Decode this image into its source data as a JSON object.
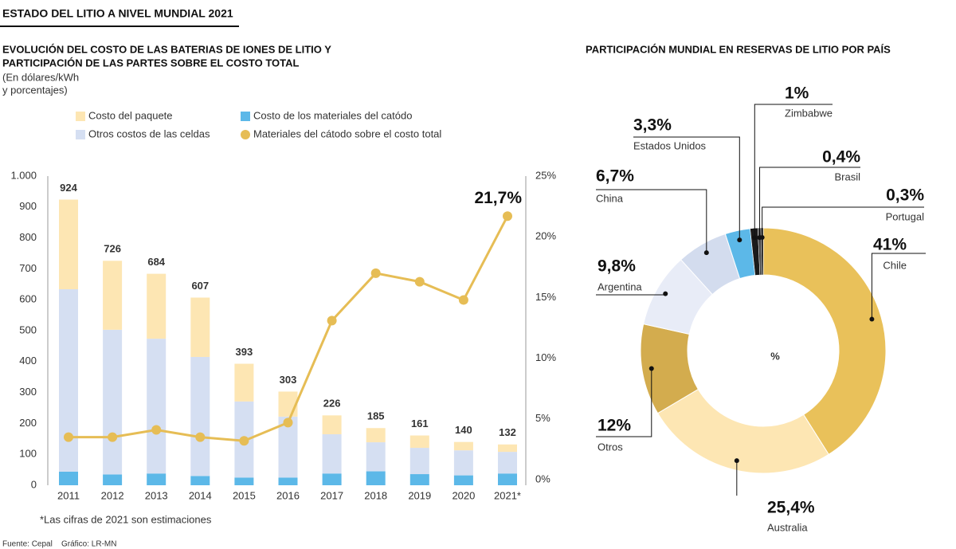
{
  "page_title": "ESTADO DEL LITIO A NIVEL MUNDIAL 2021",
  "chart_data": [
    {
      "type": "bar",
      "title": [
        "EVOLUCIÓN DEL COSTO DE LAS BATERIAS DE IONES DE LITIO Y",
        "PARTICIPACIÓN DE LAS PARTES SOBRE EL COSTO TOTAL"
      ],
      "subtitle": [
        "(En dólares/kWh",
        "y porcentajes)"
      ],
      "categories": [
        "2011",
        "2012",
        "2013",
        "2014",
        "2015",
        "2016",
        "2017",
        "2018",
        "2019",
        "2020",
        "2021*"
      ],
      "series": [
        {
          "name": "Costo de los materiales del catódo",
          "color": "#5cb8e8",
          "values": [
            44,
            35,
            38,
            30,
            25,
            25,
            38,
            45,
            36,
            32,
            38
          ]
        },
        {
          "name": "Otros costos de las celdas",
          "color": "#d5dff2",
          "values": [
            590,
            468,
            436,
            385,
            246,
            197,
            127,
            94,
            85,
            81,
            70
          ]
        },
        {
          "name": "Costo del paquete",
          "color": "#fde6b3",
          "values": [
            290,
            223,
            210,
            192,
            122,
            81,
            61,
            46,
            40,
            27,
            24
          ]
        },
        {
          "name": "Materiales del cátodo sobre el costo total",
          "color": "#e6bd55",
          "axis": "y2",
          "values": [
            3.5,
            3.5,
            4.1,
            3.5,
            3.2,
            4.7,
            13.1,
            17.0,
            16.3,
            14.8,
            21.7
          ],
          "value_labels": [
            null,
            null,
            null,
            null,
            null,
            null,
            null,
            null,
            null,
            null,
            "21,7%"
          ]
        }
      ],
      "totals": [
        924,
        726,
        684,
        607,
        393,
        303,
        226,
        185,
        161,
        140,
        132
      ],
      "ylim": [
        0,
        1000
      ],
      "yticks": [
        0,
        100,
        200,
        300,
        400,
        500,
        600,
        700,
        800,
        900,
        {
          "value": 1000,
          "label": "1.000"
        }
      ],
      "y2lim": [
        0,
        25
      ],
      "y2ticks": [
        {
          "value": 0,
          "label": "0%"
        },
        {
          "value": 5,
          "label": "5%"
        },
        {
          "value": 10,
          "label": "10%"
        },
        {
          "value": 15,
          "label": "15%"
        },
        {
          "value": 20,
          "label": "20%"
        },
        {
          "value": 25,
          "label": "25%"
        }
      ],
      "note": "*Las cifras de 2021 son estimaciones"
    },
    {
      "type": "pie",
      "title": "PARTICIPACIÓN MUNDIAL EN RESERVAS DE LITIO POR PAÍS",
      "center_label": "%",
      "categories": [
        "Chile",
        "Australia",
        "Otros",
        "Argentina",
        "China",
        "Estados Unidos",
        "Zimbabwe",
        "Brasil",
        "Portugal"
      ],
      "values": [
        41,
        25.4,
        12,
        9.8,
        6.7,
        3.3,
        1,
        0.4,
        0.3
      ],
      "value_labels": [
        "41%",
        "25,4%",
        "12%",
        "9,8%",
        "6,7%",
        "3,3%",
        "1%",
        "0,4%",
        "0,3%"
      ],
      "colors": [
        "#e9c15a",
        "#fde6b3",
        "#d3ac4e",
        "#e8ecf7",
        "#d3dcee",
        "#5cb8e8",
        "#1a1a1a",
        "#444444",
        "#111111"
      ]
    }
  ],
  "source": "Fuente: Cepal",
  "credit": "Gráfico: LR-MN"
}
